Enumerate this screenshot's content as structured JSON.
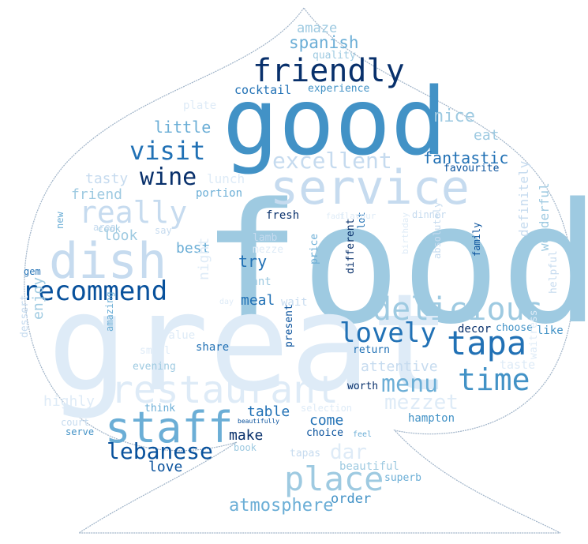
{
  "palette": {
    "background": "#ffffff",
    "outline": "#9fb3c8",
    "blues": [
      "#08306b",
      "#08519c",
      "#2171b5",
      "#4292c6",
      "#6baed6",
      "#9ecae1",
      "#c6dbef",
      "#deebf7"
    ]
  },
  "words": [
    {
      "text": "food",
      "color": "#9ecae1"
    },
    {
      "text": "great",
      "color": "#deebf7"
    },
    {
      "text": "good",
      "color": "#4292c6"
    },
    {
      "text": "service",
      "color": "#c6dbef"
    },
    {
      "text": "restaurant",
      "color": "#deebf7"
    },
    {
      "text": "dish",
      "color": "#c6dbef"
    },
    {
      "text": "staff",
      "color": "#6baed6"
    },
    {
      "text": "place",
      "color": "#9ecae1"
    },
    {
      "text": "friendly",
      "color": "#08306b"
    },
    {
      "text": "delicious",
      "color": "#9ecae1"
    },
    {
      "text": "tapa",
      "color": "#2171b5"
    },
    {
      "text": "really",
      "color": "#c6dbef"
    },
    {
      "text": "recommend",
      "color": "#08519c"
    },
    {
      "text": "time",
      "color": "#4292c6"
    },
    {
      "text": "lovely",
      "color": "#2171b5"
    },
    {
      "text": "visit",
      "color": "#2171b5"
    },
    {
      "text": "excellent",
      "color": "#c6dbef"
    },
    {
      "text": "menu",
      "color": "#6baed6"
    },
    {
      "text": "mezzet",
      "color": "#deebf7"
    },
    {
      "text": "lebanese",
      "color": "#08519c"
    },
    {
      "text": "wine",
      "color": "#08306b"
    },
    {
      "text": "atmosphere",
      "color": "#6baed6"
    },
    {
      "text": "day",
      "color": "#deebf7"
    },
    {
      "text": "nice",
      "color": "#9ecae1"
    },
    {
      "text": "eat",
      "color": "#9ecae1"
    },
    {
      "text": "fantastic",
      "color": "#2171b5"
    },
    {
      "text": "little",
      "color": "#6baed6"
    },
    {
      "text": "tasty",
      "color": "#c6dbef"
    },
    {
      "text": "friend",
      "color": "#9ecae1"
    },
    {
      "text": "lunch",
      "color": "#deebf7"
    },
    {
      "text": "spanish",
      "color": "#6baed6"
    },
    {
      "text": "amaze",
      "color": "#9ecae1"
    },
    {
      "text": "quality",
      "color": "#9ecae1"
    },
    {
      "text": "cocktail",
      "color": "#2171b5"
    },
    {
      "text": "experience",
      "color": "#4292c6"
    },
    {
      "text": "favourite",
      "color": "#08519c"
    },
    {
      "text": "portion",
      "color": "#6baed6"
    },
    {
      "text": "plate",
      "color": "#deebf7"
    },
    {
      "text": "cook",
      "color": "#9ecae1"
    },
    {
      "text": "look",
      "color": "#9ecae1"
    },
    {
      "text": "best",
      "color": "#6baed6"
    },
    {
      "text": "try",
      "color": "#2171b5"
    },
    {
      "text": "meal",
      "color": "#2171b5"
    },
    {
      "text": "night",
      "color": "#deebf7"
    },
    {
      "text": "want",
      "color": "#9ecae1"
    },
    {
      "text": "wait",
      "color": "#c6dbef"
    },
    {
      "text": "fresh",
      "color": "#08306b"
    },
    {
      "text": "lamb",
      "color": "#c6dbef"
    },
    {
      "text": "mezze",
      "color": "#deebf7"
    },
    {
      "text": "new",
      "color": "#6baed6"
    },
    {
      "text": "area",
      "color": "#c6dbef"
    },
    {
      "text": "say",
      "color": "#c6dbef"
    },
    {
      "text": "gem",
      "color": "#2171b5"
    },
    {
      "text": "enjoy",
      "color": "#9ecae1"
    },
    {
      "text": "dessert",
      "color": "#c6dbef"
    },
    {
      "text": "amazing",
      "color": "#6baed6"
    },
    {
      "text": "value",
      "color": "#deebf7"
    },
    {
      "text": "small",
      "color": "#deebf7"
    },
    {
      "text": "share",
      "color": "#2171b5"
    },
    {
      "text": "evening",
      "color": "#9ecae1"
    },
    {
      "text": "highly",
      "color": "#deebf7"
    },
    {
      "text": "table",
      "color": "#2171b5"
    },
    {
      "text": "think",
      "color": "#6baed6"
    },
    {
      "text": "court",
      "color": "#c6dbef"
    },
    {
      "text": "serve",
      "color": "#4292c6"
    },
    {
      "text": "make",
      "color": "#08306b"
    },
    {
      "text": "come",
      "color": "#2171b5"
    },
    {
      "text": "love",
      "color": "#08519c"
    },
    {
      "text": "book",
      "color": "#9ecae1"
    },
    {
      "text": "beautifully",
      "color": "#08519c"
    },
    {
      "text": "choice",
      "color": "#08519c"
    },
    {
      "text": "feel",
      "color": "#6baed6"
    },
    {
      "text": "selection",
      "color": "#deebf7"
    },
    {
      "text": "present",
      "color": "#08519c"
    },
    {
      "text": "price",
      "color": "#6baed6"
    },
    {
      "text": "different",
      "color": "#08306b"
    },
    {
      "text": "lot",
      "color": "#2171b5"
    },
    {
      "text": "fadi",
      "color": "#deebf7"
    },
    {
      "text": "flavour",
      "color": "#deebf7"
    },
    {
      "text": "dinner",
      "color": "#c6dbef"
    },
    {
      "text": "birthday",
      "color": "#deebf7"
    },
    {
      "text": "absolutely",
      "color": "#c6dbef"
    },
    {
      "text": "family",
      "color": "#08519c"
    },
    {
      "text": "definitely",
      "color": "#c6dbef"
    },
    {
      "text": "wonderful",
      "color": "#9ecae1"
    },
    {
      "text": "helpful",
      "color": "#c6dbef"
    },
    {
      "text": "decor",
      "color": "#08306b"
    },
    {
      "text": "choose",
      "color": "#4292c6"
    },
    {
      "text": "like",
      "color": "#4292c6"
    },
    {
      "text": "return",
      "color": "#2171b5"
    },
    {
      "text": "attentive",
      "color": "#c6dbef"
    },
    {
      "text": "taste",
      "color": "#deebf7"
    },
    {
      "text": "waitress",
      "color": "#deebf7"
    },
    {
      "text": "worth",
      "color": "#08306b"
    },
    {
      "text": "dar",
      "color": "#deebf7"
    },
    {
      "text": "hampton",
      "color": "#4292c6"
    },
    {
      "text": "tapas",
      "color": "#c6dbef"
    },
    {
      "text": "beautiful",
      "color": "#9ecae1"
    },
    {
      "text": "superb",
      "color": "#6baed6"
    },
    {
      "text": "order",
      "color": "#4292c6"
    }
  ]
}
